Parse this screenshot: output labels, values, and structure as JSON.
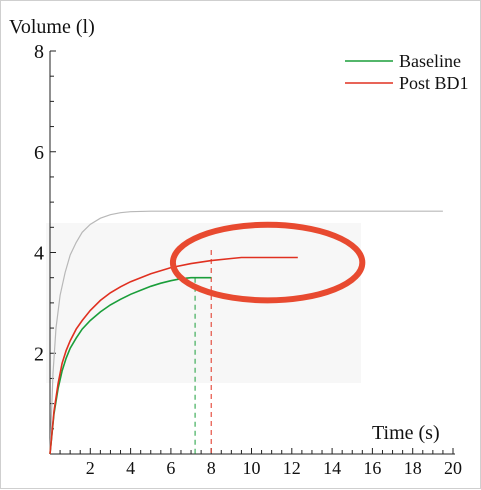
{
  "chart_data": {
    "type": "line",
    "xlabel": "Time (s)",
    "ylabel": "Volume (l)",
    "xlim": [
      0,
      20
    ],
    "ylim": [
      0,
      8
    ],
    "x_ticks": [
      2,
      4,
      6,
      8,
      10,
      12,
      14,
      16,
      18,
      20
    ],
    "y_ticks": [
      2,
      4,
      6,
      8
    ],
    "grid": false,
    "legend_position": "top-right",
    "series": [
      {
        "name": "Baseline",
        "color": "#1a9e3a",
        "x": [
          0,
          0.2,
          0.4,
          0.6,
          0.8,
          1.0,
          1.3,
          1.6,
          2.0,
          2.5,
          3.0,
          3.5,
          4.0,
          4.5,
          5.0,
          5.5,
          6.0,
          6.5,
          7.0,
          7.5,
          8.0
        ],
        "y": [
          0,
          0.8,
          1.3,
          1.65,
          1.9,
          2.1,
          2.3,
          2.48,
          2.65,
          2.82,
          2.96,
          3.07,
          3.17,
          3.25,
          3.33,
          3.39,
          3.44,
          3.48,
          3.5,
          3.5,
          3.5
        ]
      },
      {
        "name": "Post BD1",
        "color": "#e03020",
        "x": [
          0,
          0.2,
          0.4,
          0.6,
          0.8,
          1.0,
          1.3,
          1.6,
          2.0,
          2.5,
          3.0,
          3.5,
          4.0,
          5.0,
          6.0,
          7.0,
          8.0,
          9.0,
          9.5,
          10.0,
          11.0,
          12.0,
          12.3
        ],
        "y": [
          0,
          0.85,
          1.4,
          1.8,
          2.05,
          2.25,
          2.48,
          2.65,
          2.85,
          3.05,
          3.2,
          3.32,
          3.42,
          3.58,
          3.7,
          3.78,
          3.84,
          3.88,
          3.9,
          3.9,
          3.9,
          3.9,
          3.9
        ]
      },
      {
        "color": "#b8b8b8",
        "x": [
          0,
          0.15,
          0.3,
          0.5,
          0.75,
          1.0,
          1.3,
          1.6,
          2.0,
          2.5,
          3.0,
          3.5,
          4.0,
          5.0,
          6.0,
          8.0,
          10.0,
          14.0,
          19.5
        ],
        "y": [
          0,
          1.6,
          2.5,
          3.15,
          3.6,
          3.95,
          4.2,
          4.4,
          4.56,
          4.68,
          4.75,
          4.79,
          4.81,
          4.82,
          4.82,
          4.82,
          4.82,
          4.82,
          4.82
        ]
      }
    ],
    "markers": [
      {
        "x": 7.2,
        "color": "#1a9e3a",
        "style": "dashed"
      },
      {
        "x": 8.0,
        "color": "#e03020",
        "style": "dashed"
      }
    ],
    "annotation": {
      "type": "ellipse",
      "color": "#e84a30",
      "cx": 10.8,
      "cy": 3.8,
      "rx": 4.7,
      "ry": 0.75
    }
  }
}
